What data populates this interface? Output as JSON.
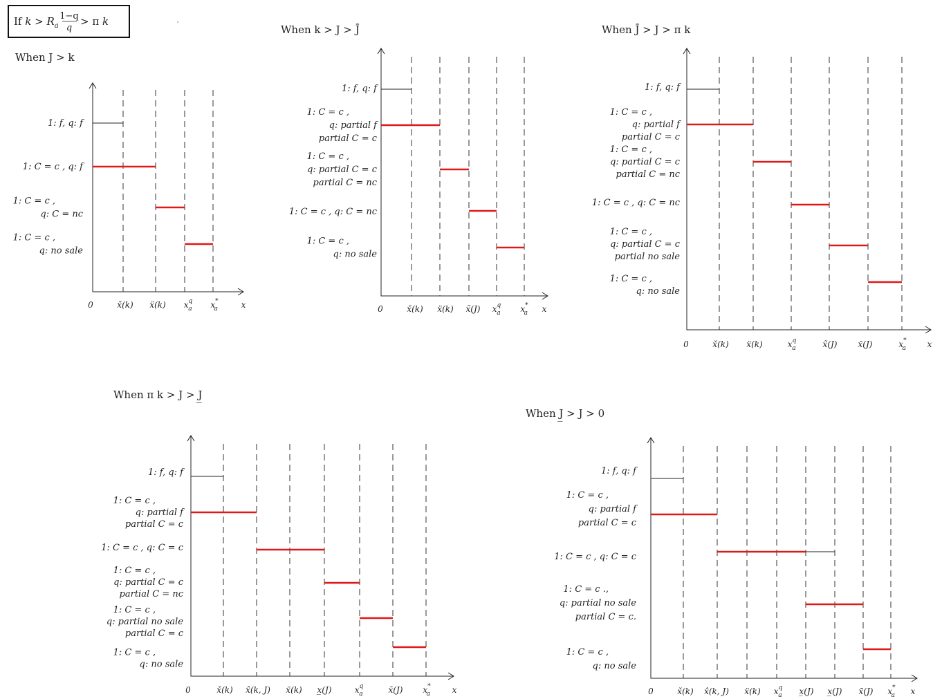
{
  "header": {
    "condition": "If k > R_a (1−q)/q > π k"
  },
  "panels": [
    {
      "title": "When J > k",
      "xticks": [
        "0",
        "x̌(k)",
        "ẍ(k)",
        "x_a^q",
        "x_a^*",
        "x"
      ],
      "rows": [
        {
          "lines": [
            "1: f,   q: f"
          ]
        },
        {
          "lines": [
            "1: C = c ,   q: f"
          ]
        },
        {
          "lines": [
            "1: C = c ,",
            "q: C = nc"
          ]
        },
        {
          "lines": [
            "1: C = c ,",
            "q: no sale"
          ]
        }
      ]
    },
    {
      "title": "When  k > J > J̄",
      "xticks": [
        "0",
        "x̌(k)",
        "ẍ(k)",
        "x̃(J)",
        "x_a^q",
        "x_a^*",
        "x"
      ],
      "rows": [
        {
          "lines": [
            "1: f,   q: f"
          ]
        },
        {
          "lines": [
            "1: C = c ,",
            "q: partial f",
            "partial C = c"
          ]
        },
        {
          "lines": [
            "1: C = c ,",
            "q: partial C = c",
            "partial C = nc"
          ]
        },
        {
          "lines": [
            "1: C = c ,   q: C = nc"
          ]
        },
        {
          "lines": [
            "1: C = c ,",
            "q: no sale"
          ]
        }
      ]
    },
    {
      "title": "When  J̄ > J > π k",
      "xticks": [
        "0",
        "x̌(k)",
        "ẍ(k)",
        "x_a^q",
        "x̃(J)",
        "x̄(J)",
        "x_a^*",
        "x"
      ],
      "rows": [
        {
          "lines": [
            "1: f,   q: f"
          ]
        },
        {
          "lines": [
            "1: C = c ,",
            "q: partial f",
            "partial C = c"
          ]
        },
        {
          "lines": [
            "1: C = c ,",
            "q: partial C = c",
            "partial C = nc"
          ]
        },
        {
          "lines": [
            "1: C = c ,   q: C = nc"
          ]
        },
        {
          "lines": [
            "1: C = c ,",
            "q: partial C = c",
            "partial no sale"
          ]
        },
        {
          "lines": [
            "1: C = c ,",
            "q: no sale"
          ]
        }
      ]
    },
    {
      "title": "When  π k > J > J̲",
      "xticks": [
        "0",
        "x̌(k)",
        "x̂(k, J)",
        "ẍ(k)",
        "x̲(J)",
        "x_a^q",
        "x̄(J)",
        "x_a^*",
        "x"
      ],
      "rows": [
        {
          "lines": [
            "1: f,   q: f"
          ]
        },
        {
          "lines": [
            "1: C = c ,",
            "q: partial f",
            "partial C = c"
          ]
        },
        {
          "lines": [
            "1: C = c ,   q: C = c"
          ]
        },
        {
          "lines": [
            "1: C = c ,",
            "q: partial C = c",
            "partial C = nc"
          ]
        },
        {
          "lines": [
            "1: C = c ,",
            "q: partial no sale",
            "partial C = c"
          ]
        },
        {
          "lines": [
            "1: C = c ,",
            "q: no sale"
          ]
        }
      ]
    },
    {
      "title": "When  J̲ > J > 0",
      "xticks": [
        "0",
        "x̌(k)",
        "x̂(k, J)",
        "ẍ(k)",
        "x_a^q",
        "x̲(J)",
        "x̲(J)",
        "x̄(J)",
        "x_a^*",
        "x"
      ],
      "rows": [
        {
          "lines": [
            "1: f,   q: f"
          ]
        },
        {
          "lines": [
            "1: C = c ,",
            "q: partial f",
            "partial C = c"
          ]
        },
        {
          "lines": [
            "1: C = c ,   q: C = c"
          ]
        },
        {
          "lines": [
            "1: C = c .,",
            "q: partial no sale",
            "partial C = c."
          ]
        },
        {
          "lines": [
            "1: C = c ,",
            "q: no sale"
          ]
        }
      ]
    }
  ],
  "colors": {
    "active_segment": "#e01818",
    "axis": "#222222"
  }
}
